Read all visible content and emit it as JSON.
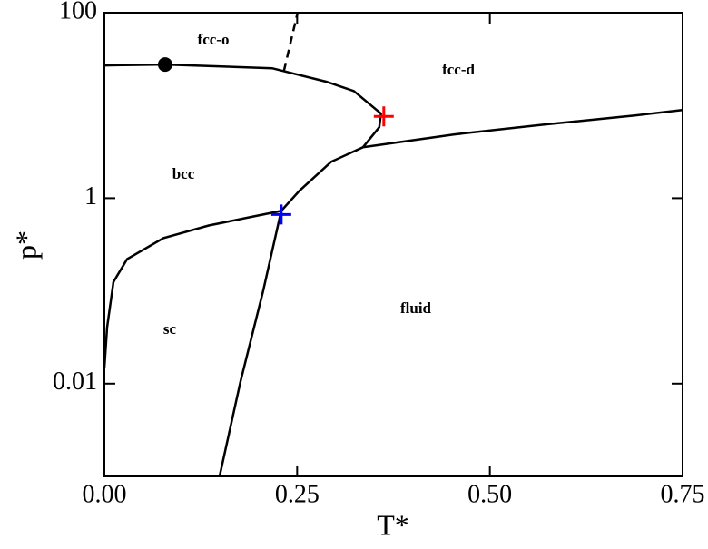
{
  "chart_data": {
    "type": "line",
    "xlabel": "T*",
    "ylabel": "p*",
    "xlim": [
      0,
      0.75
    ],
    "ylim": [
      0.001,
      100
    ],
    "yscale": "log",
    "xticks": [
      {
        "value": 0,
        "label": "0.00"
      },
      {
        "value": 0.25,
        "label": "0.25"
      },
      {
        "value": 0.5,
        "label": "0.50"
      },
      0.75
    ],
    "yticks": [
      0.01,
      1,
      100
    ],
    "annotations": [
      "fcc-o",
      "fcc-d",
      "bcc",
      "fluid",
      "sc"
    ],
    "series": [
      {
        "color": "#000000",
        "style": "solid",
        "x": [
          0,
          0.0788,
          0.2176,
          0.2882,
          0.3235,
          0.3588,
          0.3565,
          0.3353,
          0.2941,
          0.2529,
          0.2294
        ],
        "values": [
          27.0,
          27.6,
          25.2,
          18.0,
          14.3,
          8.16,
          5.82,
          3.54,
          2.47,
          1.2,
          0.729
        ]
      },
      {
        "color": "#000000",
        "style": "solid",
        "x": [
          0.2294,
          0.1941,
          0.1353,
          0.0765,
          0.0294,
          0.0118,
          0.0035,
          0
        ],
        "values": [
          0.729,
          0.637,
          0.508,
          0.371,
          0.22,
          0.125,
          0.0405,
          0.0147
        ]
      },
      {
        "color": "#000000",
        "style": "solid",
        "x": [
          0.2294,
          0.2059,
          0.1765,
          0.1494
        ],
        "values": [
          0.729,
          0.1,
          0.0105,
          0.001
        ]
      },
      {
        "color": "#000000",
        "style": "solid",
        "x": [
          0.3353,
          0.4529,
          0.5706,
          0.6882,
          0.7494
        ],
        "values": [
          3.54,
          4.86,
          6.22,
          7.8,
          8.93
        ]
      },
      {
        "color": "#000000",
        "style": "dashed",
        "x": [
          0.2329,
          0.2506
        ],
        "values": [
          23.6,
          100
        ]
      }
    ],
    "markers": [
      {
        "shape": "circle",
        "color": "#000000",
        "x": 0.0788,
        "value": 27.6
      },
      {
        "shape": "plus",
        "color": "#ff0000",
        "x": 0.3624,
        "value": 7.63
      },
      {
        "shape": "plus",
        "color": "#0000ff",
        "x": 0.2294,
        "value": 0.667
      }
    ]
  }
}
